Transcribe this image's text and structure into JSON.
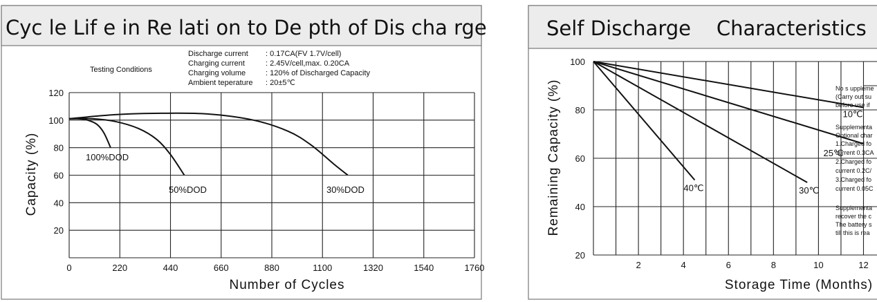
{
  "chart_data": [
    {
      "type": "line",
      "title": "Cyc le Lif e in Re lati on to De pth of Dis cha rge",
      "xlabel": "Number of Cycles",
      "ylabel": "Capacity (%)",
      "xlim": [
        0,
        1760
      ],
      "ylim": [
        0,
        120
      ],
      "x_ticks": [
        "0",
        "220",
        "440",
        "660",
        "880",
        "1100",
        "1320",
        "1540",
        "1760"
      ],
      "y_ticks": [
        "120",
        "100",
        "80",
        "60",
        "40",
        "20"
      ],
      "testing_conditions": {
        "heading": "Testing Conditions",
        "rows": [
          {
            "label": "Discharge current",
            "value": ": 0.17CA(FV 1.7V/cell)"
          },
          {
            "label": "Charging current",
            "value": ": 2.45V/cell,max. 0.20CA"
          },
          {
            "label": "Charging volume",
            "value": ": 120% of Discharged Capacity"
          },
          {
            "label": "Ambient teperature",
            "value": ": 20±5℃"
          }
        ]
      },
      "series": [
        {
          "name": "100%DOD",
          "x": [
            0,
            40,
            80,
            120,
            150,
            180
          ],
          "y": [
            101,
            101,
            100,
            97,
            91,
            80
          ]
        },
        {
          "name": "50%DOD",
          "x": [
            0,
            100,
            200,
            300,
            380,
            440,
            500
          ],
          "y": [
            101,
            101,
            99,
            94,
            86,
            75,
            60
          ]
        },
        {
          "name": "30%DOD",
          "x": [
            0,
            200,
            400,
            600,
            800,
            950,
            1050,
            1150,
            1210
          ],
          "y": [
            101,
            104,
            105,
            104.5,
            100,
            92,
            82,
            68,
            60
          ]
        }
      ]
    },
    {
      "type": "line",
      "title": "Self Discharge    Characteristics",
      "xlabel": "Storage Time (Months)",
      "ylabel": "Remaining Capacity (%)",
      "xlim": [
        0,
        12
      ],
      "ylim": [
        20,
        100
      ],
      "x_ticks": [
        "2",
        "4",
        "6",
        "8",
        "10",
        "12"
      ],
      "y_ticks": [
        "100",
        "80",
        "60",
        "40",
        "20"
      ],
      "series": [
        {
          "name": "10℃",
          "x": [
            0,
            12
          ],
          "y": [
            100,
            81
          ]
        },
        {
          "name": "25℃",
          "x": [
            0,
            12
          ],
          "y": [
            100,
            66
          ]
        },
        {
          "name": "30℃",
          "x": [
            0,
            9.5
          ],
          "y": [
            100,
            50
          ]
        },
        {
          "name": "40℃",
          "x": [
            0,
            4.5
          ],
          "y": [
            100,
            51
          ]
        }
      ],
      "notes": [
        "No s uppleme",
        "(Carry out su",
        "before use if",
        "Supplementa",
        "Optional char",
        "1.Charged fo",
        "current 0.3CA",
        "2.Charged fo",
        " current 0.2C/",
        "3.Charged fo",
        "current 0.05C",
        "Supplementa",
        "recover the c",
        "The battery s",
        "till this is rea"
      ]
    }
  ]
}
